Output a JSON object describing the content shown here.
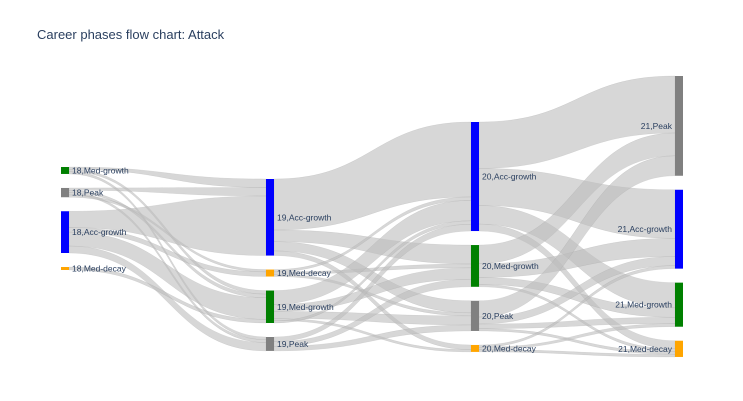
{
  "chart_data": {
    "type": "sankey",
    "title": "Career phases flow chart: Attack",
    "colors": {
      "Acc-growth": "#0000ff",
      "Med-growth": "#008000",
      "Peak": "#808080",
      "Med-decay": "#ffa500",
      "link": "#bdbdbd"
    },
    "columns": [
      {
        "age": "18",
        "nodes": [
          {
            "id": "18,Med-growth",
            "phase": "Med-growth",
            "value": 3
          },
          {
            "id": "18,Peak",
            "phase": "Peak",
            "value": 4
          },
          {
            "id": "18,Acc-growth",
            "phase": "Acc-growth",
            "value": 18
          },
          {
            "id": "18,Med-decay",
            "phase": "Med-decay",
            "value": 1
          }
        ]
      },
      {
        "age": "19",
        "nodes": [
          {
            "id": "19,Acc-growth",
            "phase": "Acc-growth",
            "value": 33
          },
          {
            "id": "19,Med-decay",
            "phase": "Med-decay",
            "value": 3
          },
          {
            "id": "19,Med-growth",
            "phase": "Med-growth",
            "value": 14
          },
          {
            "id": "19,Peak",
            "phase": "Peak",
            "value": 6
          }
        ]
      },
      {
        "age": "20",
        "nodes": [
          {
            "id": "20,Acc-growth",
            "phase": "Acc-growth",
            "value": 47
          },
          {
            "id": "20,Med-growth",
            "phase": "Med-growth",
            "value": 18
          },
          {
            "id": "20,Peak",
            "phase": "Peak",
            "value": 13
          },
          {
            "id": "20,Med-decay",
            "phase": "Med-decay",
            "value": 3
          }
        ]
      },
      {
        "age": "21",
        "nodes": [
          {
            "id": "21,Peak",
            "phase": "Peak",
            "value": 43
          },
          {
            "id": "21,Acc-growth",
            "phase": "Acc-growth",
            "value": 34
          },
          {
            "id": "21,Med-growth",
            "phase": "Med-growth",
            "value": 19
          },
          {
            "id": "21,Med-decay",
            "phase": "Med-decay",
            "value": 7
          }
        ]
      }
    ],
    "links": [
      {
        "source": "18,Med-growth",
        "target": "19,Acc-growth",
        "value": 1
      },
      {
        "source": "18,Med-growth",
        "target": "19,Med-growth",
        "value": 1
      },
      {
        "source": "18,Med-growth",
        "target": "19,Peak",
        "value": 1
      },
      {
        "source": "18,Peak",
        "target": "19,Acc-growth",
        "value": 1
      },
      {
        "source": "18,Peak",
        "target": "19,Med-growth",
        "value": 1
      },
      {
        "source": "18,Peak",
        "target": "19,Peak",
        "value": 1
      },
      {
        "source": "18,Peak",
        "target": "19,Med-decay",
        "value": 1
      },
      {
        "source": "18,Acc-growth",
        "target": "19,Acc-growth",
        "value": 7
      },
      {
        "source": "18,Acc-growth",
        "target": "19,Med-decay",
        "value": 2
      },
      {
        "source": "18,Acc-growth",
        "target": "19,Med-growth",
        "value": 6
      },
      {
        "source": "18,Acc-growth",
        "target": "19,Peak",
        "value": 3
      },
      {
        "source": "18,Med-decay",
        "target": "19,Med-growth",
        "value": 1
      },
      {
        "source": "19,Acc-growth",
        "target": "20,Acc-growth",
        "value": 22
      },
      {
        "source": "19,Acc-growth",
        "target": "20,Med-growth",
        "value": 5
      },
      {
        "source": "19,Acc-growth",
        "target": "20,Peak",
        "value": 4
      },
      {
        "source": "19,Acc-growth",
        "target": "20,Med-decay",
        "value": 2
      },
      {
        "source": "19,Med-decay",
        "target": "20,Acc-growth",
        "value": 1
      },
      {
        "source": "19,Med-decay",
        "target": "20,Med-growth",
        "value": 1
      },
      {
        "source": "19,Med-decay",
        "target": "20,Peak",
        "value": 1
      },
      {
        "source": "19,Med-growth",
        "target": "20,Acc-growth",
        "value": 6
      },
      {
        "source": "19,Med-growth",
        "target": "20,Med-growth",
        "value": 3
      },
      {
        "source": "19,Med-growth",
        "target": "20,Peak",
        "value": 3
      },
      {
        "source": "19,Med-growth",
        "target": "20,Med-decay",
        "value": 1
      },
      {
        "source": "19,Med-growth",
        "target": "20,Acc-growth",
        "value": 1
      },
      {
        "source": "19,Peak",
        "target": "20,Acc-growth",
        "value": 2
      },
      {
        "source": "19,Peak",
        "target": "20,Med-growth",
        "value": 2
      },
      {
        "source": "19,Peak",
        "target": "20,Peak",
        "value": 2
      },
      {
        "source": "20,Acc-growth",
        "target": "21,Peak",
        "value": 20
      },
      {
        "source": "20,Acc-growth",
        "target": "21,Acc-growth",
        "value": 16
      },
      {
        "source": "20,Acc-growth",
        "target": "21,Med-growth",
        "value": 8
      },
      {
        "source": "20,Acc-growth",
        "target": "21,Med-decay",
        "value": 3
      },
      {
        "source": "20,Med-growth",
        "target": "21,Peak",
        "value": 8
      },
      {
        "source": "20,Med-growth",
        "target": "21,Acc-growth",
        "value": 6
      },
      {
        "source": "20,Med-growth",
        "target": "21,Med-growth",
        "value": 3
      },
      {
        "source": "20,Med-growth",
        "target": "21,Med-decay",
        "value": 1
      },
      {
        "source": "20,Peak",
        "target": "21,Peak",
        "value": 7
      },
      {
        "source": "20,Peak",
        "target": "21,Acc-growth",
        "value": 3
      },
      {
        "source": "20,Peak",
        "target": "21,Med-growth",
        "value": 2
      },
      {
        "source": "20,Peak",
        "target": "21,Med-decay",
        "value": 1
      },
      {
        "source": "20,Med-decay",
        "target": "21,Acc-growth",
        "value": 1
      },
      {
        "source": "20,Med-decay",
        "target": "21,Med-growth",
        "value": 1
      },
      {
        "source": "20,Med-decay",
        "target": "21,Med-decay",
        "value": 1
      }
    ]
  }
}
